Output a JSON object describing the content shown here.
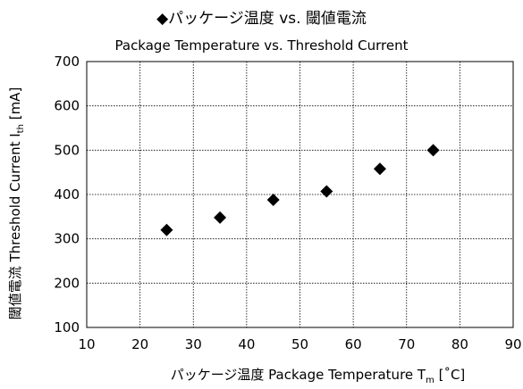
{
  "chart_data": {
    "type": "scatter",
    "title": "◆パッケージ温度 vs. 閾値電流",
    "subtitle": "Package Temperature vs. Threshold Current",
    "xlabel_prefix": "パッケージ温度 Package Temperature T",
    "xlabel_sub": "m",
    "xlabel_suffix": " [˚C]",
    "ylabel_prefix": "閾値電流 Threshold Current I",
    "ylabel_sub": "th",
    "ylabel_suffix": " [mA]",
    "xlim": [
      10,
      90
    ],
    "ylim": [
      100,
      700
    ],
    "xticks": [
      10,
      20,
      30,
      40,
      50,
      60,
      70,
      80,
      90
    ],
    "yticks": [
      100,
      200,
      300,
      400,
      500,
      600,
      700
    ],
    "grid": true,
    "marker": "diamond",
    "marker_color": "#000000",
    "points": [
      {
        "x": 25,
        "y": 320
      },
      {
        "x": 35,
        "y": 348
      },
      {
        "x": 45,
        "y": 388
      },
      {
        "x": 55,
        "y": 407
      },
      {
        "x": 65,
        "y": 458
      },
      {
        "x": 75,
        "y": 500
      }
    ]
  }
}
